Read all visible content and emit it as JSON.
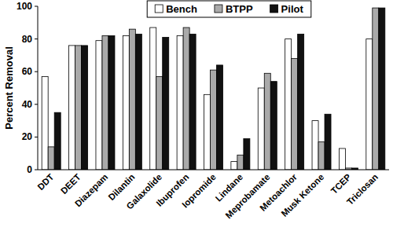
{
  "chart_data": {
    "type": "bar",
    "y_label": "Percent Removal",
    "categories": [
      "DDT",
      "DEET",
      "Diazepam",
      "Dilantin",
      "Galaxolide",
      "Ibuprofen",
      "Iopromide",
      "Lindane",
      "Meprobamate",
      "Metoachlor",
      "Musk Ketone",
      "TCEP",
      "Triclosan"
    ],
    "series": [
      {
        "name": "Bench",
        "color": "#ffffff",
        "values": [
          57,
          76,
          79,
          82,
          87,
          82,
          46,
          5,
          50,
          80,
          30,
          13,
          80
        ]
      },
      {
        "name": "BTPP",
        "color": "#aaaaaa",
        "values": [
          14,
          76,
          82,
          86,
          57,
          87,
          61,
          9,
          59,
          68,
          17,
          1,
          99
        ]
      },
      {
        "name": "Pilot",
        "color": "#111111",
        "values": [
          35,
          76,
          82,
          83,
          81,
          83,
          64,
          19,
          54,
          83,
          34,
          1,
          99
        ]
      }
    ],
    "ylim": [
      0,
      100
    ],
    "yticks": [
      0,
      20,
      40,
      60,
      80,
      100
    ],
    "grid": false,
    "legend": "top"
  }
}
